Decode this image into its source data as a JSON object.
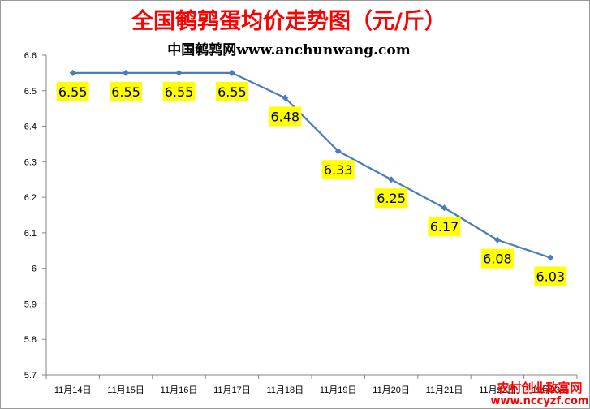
{
  "chart_data": {
    "type": "line",
    "title": "全国鹌鹑蛋均价走势图（元/斤）",
    "subtitle": "中国鹌鹑网www.anchunwang.com",
    "categories": [
      "11月14日",
      "11月15日",
      "11月16日",
      "11月17日",
      "11月18日",
      "11月19日",
      "11月20日",
      "11月21日",
      "11月22日",
      "11月23日"
    ],
    "series": [
      {
        "values": [
          6.55,
          6.55,
          6.55,
          6.55,
          6.48,
          6.33,
          6.25,
          6.17,
          6.08,
          6.03
        ],
        "labels": [
          "6.55",
          "6.55",
          "6.55",
          "6.55",
          "6.48",
          "6.33",
          "6.25",
          "6.17",
          "6.08",
          "6.03"
        ],
        "color": "#4a7ebb"
      }
    ],
    "yticks": [
      "6.6",
      "6.5",
      "6.4",
      "6.3",
      "6.2",
      "6.1",
      "6",
      "5.9",
      "5.8",
      "5.7"
    ],
    "ylim": [
      5.7,
      6.6
    ],
    "xlabel": "",
    "ylabel": "",
    "grid": false,
    "legend": "none",
    "label_background": "#ffff00",
    "title_color": "#ff0000"
  },
  "watermark": {
    "line1": "农村创业致富网",
    "line2": "www.nccyzf.com",
    "color": "#ff0000"
  }
}
